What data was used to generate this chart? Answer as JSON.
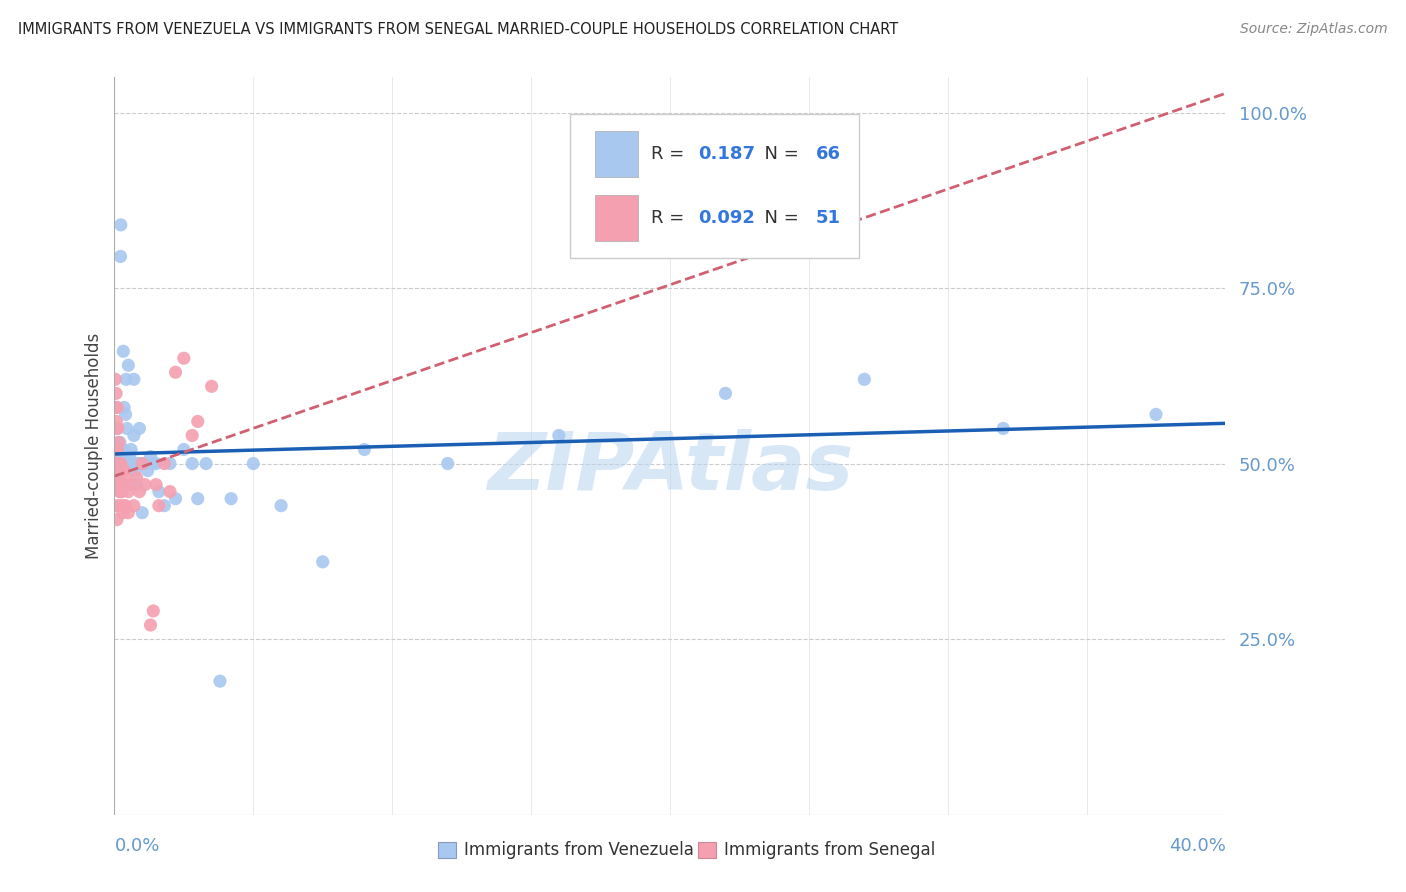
{
  "title": "IMMIGRANTS FROM VENEZUELA VS IMMIGRANTS FROM SENEGAL MARRIED-COUPLE HOUSEHOLDS CORRELATION CHART",
  "source": "Source: ZipAtlas.com",
  "ylabel": "Married-couple Households",
  "r_venezuela": 0.187,
  "n_venezuela": 66,
  "r_senegal": 0.092,
  "n_senegal": 51,
  "color_venezuela": "#a8c8f0",
  "color_senegal": "#f4a0b0",
  "line_color_venezuela": "#1a5fb4",
  "line_color_senegal": "#d06070",
  "background_color": "#ffffff",
  "watermark": "ZIPAtlas",
  "tick_color": "#6699cc",
  "grid_color": "#cccccc",
  "venezuela_x": [
    0.0008,
    0.0009,
    0.001,
    0.001,
    0.0012,
    0.0013,
    0.0014,
    0.0015,
    0.0015,
    0.0016,
    0.0017,
    0.0018,
    0.0019,
    0.002,
    0.002,
    0.0022,
    0.0023,
    0.0025,
    0.0026,
    0.003,
    0.003,
    0.0032,
    0.0035,
    0.004,
    0.004,
    0.0042,
    0.0045,
    0.005,
    0.005,
    0.0055,
    0.006,
    0.006,
    0.0065,
    0.007,
    0.007,
    0.0075,
    0.008,
    0.008,
    0.009,
    0.009,
    0.01,
    0.011,
    0.012,
    0.013,
    0.014,
    0.015,
    0.016,
    0.018,
    0.02,
    0.022,
    0.025,
    0.028,
    0.03,
    0.033,
    0.038,
    0.042,
    0.05,
    0.06,
    0.075,
    0.09,
    0.12,
    0.16,
    0.22,
    0.27,
    0.32,
    0.375
  ],
  "venezuela_y": [
    0.5,
    0.52,
    0.48,
    0.51,
    0.5,
    0.52,
    0.49,
    0.51,
    0.53,
    0.5,
    0.52,
    0.49,
    0.51,
    0.5,
    0.53,
    0.795,
    0.84,
    0.5,
    0.46,
    0.51,
    0.52,
    0.66,
    0.58,
    0.57,
    0.5,
    0.62,
    0.55,
    0.5,
    0.64,
    0.51,
    0.52,
    0.5,
    0.5,
    0.62,
    0.54,
    0.49,
    0.5,
    0.47,
    0.55,
    0.5,
    0.43,
    0.5,
    0.49,
    0.51,
    0.5,
    0.5,
    0.46,
    0.44,
    0.5,
    0.45,
    0.52,
    0.5,
    0.45,
    0.5,
    0.19,
    0.45,
    0.5,
    0.44,
    0.36,
    0.52,
    0.5,
    0.54,
    0.6,
    0.62,
    0.55,
    0.57
  ],
  "senegal_x": [
    0.0003,
    0.0004,
    0.0005,
    0.0005,
    0.0006,
    0.0006,
    0.0007,
    0.0007,
    0.0008,
    0.0008,
    0.0009,
    0.001,
    0.001,
    0.0011,
    0.0012,
    0.0013,
    0.0014,
    0.0015,
    0.0016,
    0.0017,
    0.0018,
    0.002,
    0.002,
    0.0022,
    0.0023,
    0.0025,
    0.003,
    0.003,
    0.0032,
    0.0035,
    0.004,
    0.004,
    0.005,
    0.005,
    0.006,
    0.007,
    0.008,
    0.009,
    0.01,
    0.011,
    0.013,
    0.014,
    0.015,
    0.016,
    0.018,
    0.02,
    0.022,
    0.025,
    0.028,
    0.03,
    0.035
  ],
  "senegal_y": [
    0.62,
    0.58,
    0.55,
    0.5,
    0.6,
    0.48,
    0.56,
    0.52,
    0.47,
    0.44,
    0.42,
    0.58,
    0.52,
    0.48,
    0.55,
    0.5,
    0.48,
    0.53,
    0.48,
    0.5,
    0.46,
    0.47,
    0.44,
    0.49,
    0.5,
    0.46,
    0.43,
    0.47,
    0.44,
    0.49,
    0.44,
    0.48,
    0.46,
    0.43,
    0.47,
    0.44,
    0.48,
    0.46,
    0.5,
    0.47,
    0.27,
    0.29,
    0.47,
    0.44,
    0.5,
    0.46,
    0.63,
    0.65,
    0.54,
    0.56,
    0.61
  ],
  "xlim": [
    0,
    0.4
  ],
  "ylim": [
    0,
    1.05
  ]
}
